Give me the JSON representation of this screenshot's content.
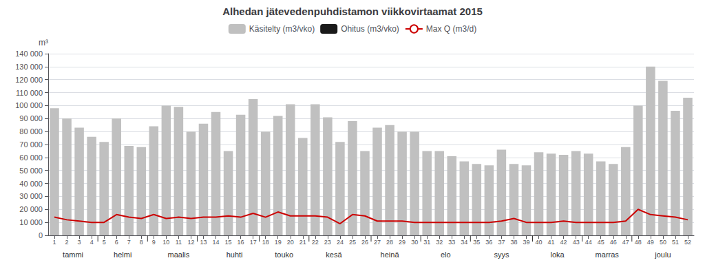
{
  "chart_data": {
    "type": "bar",
    "title": "Alhedan jätevedenpuhdistamon viikkovirtaamat 2015",
    "y_label": "m³",
    "categories": [
      1,
      2,
      3,
      4,
      5,
      6,
      7,
      8,
      9,
      10,
      11,
      12,
      13,
      14,
      15,
      16,
      17,
      18,
      19,
      20,
      21,
      22,
      23,
      24,
      25,
      26,
      27,
      28,
      29,
      30,
      31,
      32,
      33,
      34,
      35,
      36,
      37,
      38,
      39,
      40,
      41,
      42,
      43,
      44,
      45,
      46,
      47,
      48,
      49,
      50,
      51,
      52
    ],
    "series": [
      {
        "name": "Käsitelty (m3/vko)",
        "type": "bar",
        "color": "#c0c0c0",
        "values": [
          98000,
          90000,
          83000,
          76000,
          72000,
          90000,
          69000,
          68000,
          84000,
          100000,
          99000,
          80000,
          86000,
          95000,
          65000,
          93000,
          105000,
          80000,
          92000,
          101000,
          75000,
          101000,
          91000,
          72000,
          88000,
          65000,
          83000,
          85000,
          80000,
          80000,
          65000,
          65000,
          61000,
          57000,
          55000,
          54000,
          66000,
          55000,
          54000,
          64000,
          63000,
          62000,
          65000,
          63000,
          57000,
          55000,
          68000,
          100000,
          130000,
          119000,
          96000,
          106000
        ]
      },
      {
        "name": "Ohitus (m3/vko)",
        "type": "bar",
        "color": "#1a1a1a",
        "values": [
          0,
          0,
          0,
          0,
          0,
          0,
          0,
          0,
          0,
          0,
          0,
          0,
          0,
          0,
          0,
          0,
          0,
          0,
          0,
          0,
          0,
          0,
          0,
          0,
          0,
          0,
          0,
          0,
          0,
          0,
          0,
          0,
          0,
          0,
          0,
          0,
          0,
          0,
          0,
          0,
          0,
          0,
          0,
          0,
          0,
          0,
          0,
          0,
          0,
          0,
          0,
          0
        ]
      },
      {
        "name": "Max Q (m3/d)",
        "type": "line",
        "color": "#cc0000",
        "values": [
          14000,
          12000,
          11000,
          10000,
          10000,
          16000,
          14000,
          13000,
          16000,
          13000,
          14000,
          13000,
          14000,
          14000,
          15000,
          14000,
          17000,
          14000,
          18000,
          15000,
          15000,
          15000,
          14000,
          9000,
          16000,
          15000,
          11000,
          11000,
          11000,
          10000,
          10000,
          10000,
          10000,
          10000,
          10000,
          10000,
          11000,
          13000,
          10000,
          10000,
          10000,
          11000,
          10000,
          10000,
          10000,
          10000,
          11000,
          20000,
          16000,
          15000,
          14000,
          12000
        ]
      }
    ],
    "stacked": true,
    "ylim": [
      0,
      140000
    ],
    "yticks": [
      0,
      {
        "value": 10000,
        "label": "10 000"
      },
      {
        "value": 20000,
        "label": "20 000"
      },
      {
        "value": 30000,
        "label": "30 000"
      },
      {
        "value": 40000,
        "label": "40 000"
      },
      {
        "value": 50000,
        "label": "50 000"
      },
      {
        "value": 60000,
        "label": "60 000"
      },
      {
        "value": 70000,
        "label": "70 000"
      },
      {
        "value": 80000,
        "label": "80 000"
      },
      {
        "value": 90000,
        "label": "90 000"
      },
      {
        "value": 100000,
        "label": "100 000"
      },
      {
        "value": 110000,
        "label": "110 000"
      },
      {
        "value": 120000,
        "label": "120 000"
      },
      {
        "value": 130000,
        "label": "130 000"
      },
      {
        "value": 140000,
        "label": "140 000"
      }
    ],
    "annotations": [
      {
        "text": "tammi",
        "x": 2.5
      },
      {
        "text": "helmi",
        "x": 6.5
      },
      {
        "text": "maalis",
        "x": 11.0
      },
      {
        "text": "huhti",
        "x": 15.5
      },
      {
        "text": "touko",
        "x": 19.5
      },
      {
        "text": "kesä",
        "x": 23.5
      },
      {
        "text": "heinä",
        "x": 28.0
      },
      {
        "text": "elo",
        "x": 32.5
      },
      {
        "text": "syys",
        "x": 37.0
      },
      {
        "text": "loka",
        "x": 41.5
      },
      {
        "text": "marras",
        "x": 45.5
      },
      {
        "text": "joulu",
        "x": 50.0
      }
    ],
    "month_dividers": [
      4.5,
      8.5,
      12.5,
      17.5,
      21.5,
      26.5,
      30.5,
      34.5,
      39.5,
      43.5,
      47.5
    ],
    "grid": true,
    "legend": "top"
  }
}
